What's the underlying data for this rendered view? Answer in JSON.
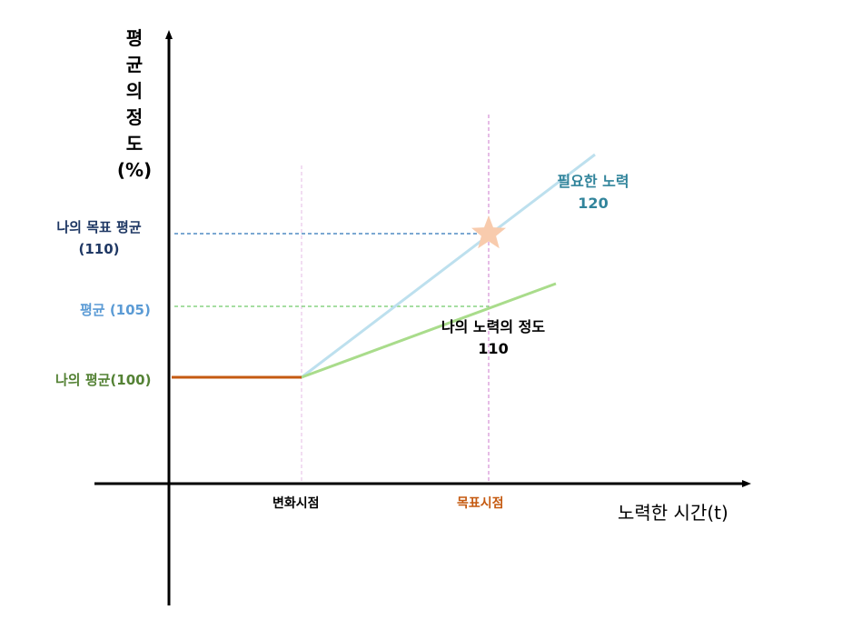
{
  "colors": {
    "axis": "#000000",
    "current_line": "#c55a11",
    "needed_line": "#bde0ee",
    "effort_line": "#a9dc8b",
    "target_guide": "#2e75b6",
    "avg_guide": "#70c96a",
    "vertical_guide": "#d58fd6",
    "star": "#f8cbad"
  },
  "y_axis": {
    "label_lines": [
      "평",
      "균",
      "의",
      "정",
      "도",
      "(%)"
    ]
  },
  "x_axis": {
    "label": "노력한 시간(t)"
  },
  "y_labels": {
    "target_avg_line1": "나의 목표 평균",
    "target_avg_line2": "(110)",
    "average": "평균 (105)",
    "my_average": "나의 평균(100)"
  },
  "x_labels": {
    "change_point": "변화시점",
    "goal_point": "목표시점"
  },
  "annotations": {
    "needed_effort_line1": "필요한 노력",
    "needed_effort_line2": "120",
    "my_effort_line1": "나의 노력의 정도",
    "my_effort_line2": "110"
  },
  "markers": {
    "target_icon": "star-icon"
  }
}
